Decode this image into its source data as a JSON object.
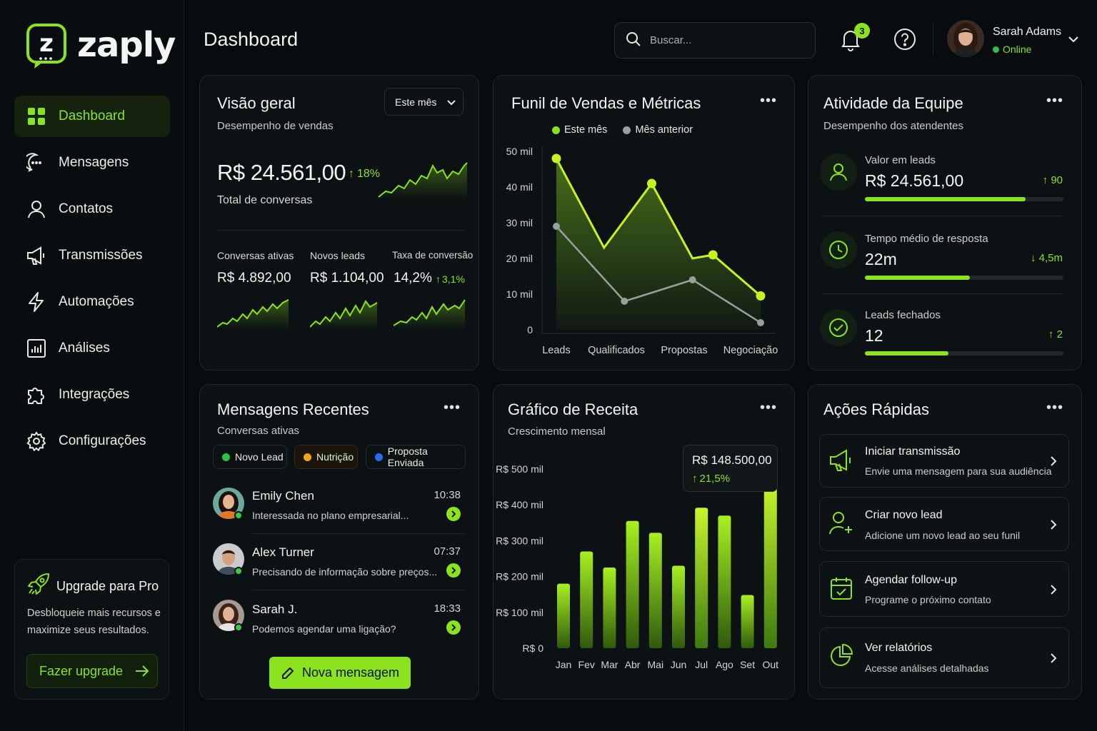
{
  "app": {
    "name": "zaply",
    "page_title": "Dashboard"
  },
  "sidebar": {
    "items": [
      {
        "label": "Dashboard",
        "icon": "grid-icon",
        "active": true
      },
      {
        "label": "Mensagens",
        "icon": "chat-icon"
      },
      {
        "label": "Contatos",
        "icon": "user-icon"
      },
      {
        "label": "Transmissões",
        "icon": "megaphone-icon"
      },
      {
        "label": "Automações",
        "icon": "bolt-icon"
      },
      {
        "label": "Análises",
        "icon": "bar-chart-icon"
      },
      {
        "label": "Integrações",
        "icon": "puzzle-icon"
      },
      {
        "label": "Configurações",
        "icon": "gear-icon"
      }
    ],
    "upgrade": {
      "title": "Upgrade para Pro",
      "description": "Desbloqueie mais recursos e maximize seus resultados.",
      "button": "Fazer upgrade"
    }
  },
  "header": {
    "search_placeholder": "Buscar...",
    "notifications_count": "3",
    "user": {
      "name": "Sarah Adams",
      "status": "Online"
    }
  },
  "overview": {
    "title": "Visão geral",
    "subtitle": "Desempenho de vendas",
    "period": "Este mês",
    "total_value": "R$ 24.561,00",
    "total_delta": "18%",
    "total_label": "Total de conversas",
    "metrics": [
      {
        "label": "Conversas ativas",
        "value": "R$ 4.892,00"
      },
      {
        "label": "Novos leads",
        "value": "R$ 1.104,00"
      },
      {
        "label": "Taxa de conversão",
        "value": "14,2%",
        "delta": "3,1%"
      }
    ]
  },
  "funnel": {
    "title": "Funil de Vendas e Métricas",
    "legend_current": "Este mês",
    "legend_previous": "Mês anterior"
  },
  "team": {
    "title": "Atividade da Equipe",
    "subtitle": "Desempenho dos atendentes",
    "rows": [
      {
        "label": "Valor em leads",
        "value": "R$ 24.561,00",
        "delta": "90",
        "direction": "up",
        "progress": 0.81
      },
      {
        "label": "Tempo médio de resposta",
        "value": "22m",
        "delta": "4,5m",
        "direction": "down",
        "progress": 0.53
      },
      {
        "label": "Leads fechados",
        "value": "12",
        "delta": "2",
        "direction": "up",
        "progress": 0.42
      }
    ]
  },
  "messages": {
    "title": "Mensagens Recentes",
    "subtitle": "Conversas ativas",
    "filters": [
      {
        "label": "Novo Lead",
        "color": "#2ec14a"
      },
      {
        "label": "Nutrição",
        "color": "#f2a516"
      },
      {
        "label": "Proposta Enviada",
        "color": "#2a6bf2"
      }
    ],
    "items": [
      {
        "name": "Emily Chen",
        "text": "Interessada no plano empresarial...",
        "time": "10:38"
      },
      {
        "name": "Alex Turner",
        "text": "Precisando de informação sobre preços...",
        "time": "07:37"
      },
      {
        "name": "Sarah J.",
        "text": "Podemos agendar uma ligação?",
        "time": "18:33"
      }
    ],
    "new_button": "Nova mensagem"
  },
  "revenue": {
    "title": "Gráfico de Receita",
    "subtitle": "Crescimento mensal",
    "tooltip_value": "R$ 148.500,00",
    "tooltip_delta": "21,5%"
  },
  "actions": {
    "title": "Ações Rápidas",
    "items": [
      {
        "title": "Iniciar transmissão",
        "desc": "Envie uma mensagem para sua audiência",
        "icon": "megaphone-icon"
      },
      {
        "title": "Criar novo lead",
        "desc": "Adicione um novo lead ao seu funil",
        "icon": "user-plus-icon"
      },
      {
        "title": "Agendar follow-up",
        "desc": "Programe o próximo contato",
        "icon": "calendar-icon"
      },
      {
        "title": "Ver relatórios",
        "desc": "Acesse análises detalhadas",
        "icon": "pie-chart-icon"
      }
    ]
  },
  "colors": {
    "accent": "#8be21f",
    "background": "#080c0e",
    "card": "#0c1113",
    "previous_series": "#9a9fa0"
  },
  "chart_data": [
    {
      "type": "area",
      "title": "Funil de Vendas e Métricas",
      "categories": [
        "Leads",
        "Qualificados",
        "Propostas",
        "Negociação"
      ],
      "x": [
        0,
        1,
        2,
        3
      ],
      "x_tick_labels": [
        "Leads",
        "",
        "Qualificados",
        "",
        "Propostas",
        "",
        "Negociação"
      ],
      "ylim": [
        0,
        50000
      ],
      "y_tick_labels": [
        "0",
        "10 mil",
        "20 mil",
        "30 mil",
        "40 mil",
        "50 mil"
      ],
      "y_ticks": [
        0,
        10000,
        20000,
        30000,
        40000,
        50000
      ],
      "series": [
        {
          "name": "Este mês",
          "x": [
            0,
            0.7,
            1.4,
            2.0,
            2.3,
            3.0
          ],
          "values": [
            48000,
            23000,
            41000,
            20000,
            21000,
            9500
          ]
        },
        {
          "name": "Mês anterior",
          "x": [
            0,
            1.0,
            2.0,
            3.0
          ],
          "values": [
            29000,
            8000,
            14000,
            2000
          ]
        }
      ],
      "legend": "top"
    },
    {
      "type": "bar",
      "title": "Gráfico de Receita",
      "categories": [
        "Jan",
        "Fev",
        "Mar",
        "Abr",
        "Mai",
        "Jun",
        "Jul",
        "Ago",
        "Set",
        "Out"
      ],
      "values": [
        180000,
        270000,
        225000,
        355000,
        322000,
        230000,
        392000,
        370000,
        148500,
        462000
      ],
      "ylim": [
        0,
        500000
      ],
      "y_tick_labels": [
        "R$ 0",
        "R$ 100 mil",
        "R$ 200 mil",
        "R$ 300 mil",
        "R$ 400 mil",
        "R$ 500 mil"
      ],
      "y_ticks": [
        0,
        100000,
        200000,
        300000,
        400000,
        500000
      ]
    }
  ]
}
